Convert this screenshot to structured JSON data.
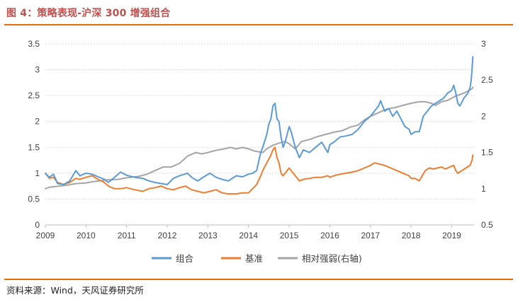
{
  "header": {
    "title": "图 4：策略表现-沪深 300 增强组合"
  },
  "footer": {
    "source": "资料来源：Wind，天风证券研究所"
  },
  "chart_data": {
    "type": "line",
    "title": "",
    "xlabel": "",
    "ylabel": "",
    "xlim": [
      2009.0,
      2019.55
    ],
    "ylim_left": [
      0,
      3.5
    ],
    "ylim_right": [
      0.5,
      3
    ],
    "x_ticks": [
      "2009",
      "2010",
      "2011",
      "2012",
      "2013",
      "2014",
      "2015",
      "2016",
      "2017",
      "2018",
      "2019"
    ],
    "y_left_ticks": [
      "0",
      "0.5",
      "1",
      "1.5",
      "2",
      "2.5",
      "3",
      "3.5"
    ],
    "y_right_ticks": [
      "0.5",
      "1",
      "1.5",
      "2",
      "2.5",
      "3"
    ],
    "legend_position": "bottom",
    "grid": true,
    "series": [
      {
        "name": "组合",
        "axis": "left",
        "color": "#5b9bd5",
        "points": [
          [
            2009.0,
            1.0
          ],
          [
            2009.1,
            0.92
          ],
          [
            2009.2,
            0.98
          ],
          [
            2009.3,
            0.8
          ],
          [
            2009.45,
            0.78
          ],
          [
            2009.6,
            0.85
          ],
          [
            2009.75,
            1.05
          ],
          [
            2009.85,
            0.95
          ],
          [
            2010.0,
            1.0
          ],
          [
            2010.15,
            0.98
          ],
          [
            2010.3,
            0.93
          ],
          [
            2010.45,
            0.88
          ],
          [
            2010.55,
            0.82
          ],
          [
            2010.7,
            0.92
          ],
          [
            2010.85,
            1.02
          ],
          [
            2011.0,
            0.96
          ],
          [
            2011.2,
            0.92
          ],
          [
            2011.4,
            0.9
          ],
          [
            2011.55,
            0.85
          ],
          [
            2011.7,
            0.82
          ],
          [
            2011.85,
            0.8
          ],
          [
            2012.0,
            0.78
          ],
          [
            2012.15,
            0.9
          ],
          [
            2012.3,
            0.95
          ],
          [
            2012.5,
            1.0
          ],
          [
            2012.6,
            0.92
          ],
          [
            2012.75,
            0.85
          ],
          [
            2012.9,
            0.93
          ],
          [
            2013.05,
            1.0
          ],
          [
            2013.2,
            0.92
          ],
          [
            2013.35,
            0.88
          ],
          [
            2013.5,
            0.85
          ],
          [
            2013.7,
            0.95
          ],
          [
            2013.85,
            0.93
          ],
          [
            2014.0,
            0.98
          ],
          [
            2014.1,
            1.0
          ],
          [
            2014.2,
            1.05
          ],
          [
            2014.3,
            1.4
          ],
          [
            2014.35,
            1.5
          ],
          [
            2014.45,
            1.75
          ],
          [
            2014.5,
            1.95
          ],
          [
            2014.55,
            2.05
          ],
          [
            2014.6,
            2.3
          ],
          [
            2014.65,
            2.35
          ],
          [
            2014.7,
            2.05
          ],
          [
            2014.75,
            2.0
          ],
          [
            2014.8,
            1.7
          ],
          [
            2014.85,
            1.5
          ],
          [
            2014.9,
            1.6
          ],
          [
            2015.0,
            1.9
          ],
          [
            2015.05,
            1.8
          ],
          [
            2015.15,
            1.5
          ],
          [
            2015.25,
            1.3
          ],
          [
            2015.35,
            1.45
          ],
          [
            2015.5,
            1.4
          ],
          [
            2015.65,
            1.5
          ],
          [
            2015.8,
            1.6
          ],
          [
            2015.95,
            1.4
          ],
          [
            2016.0,
            1.55
          ],
          [
            2016.1,
            1.6
          ],
          [
            2016.25,
            1.7
          ],
          [
            2016.4,
            1.72
          ],
          [
            2016.55,
            1.75
          ],
          [
            2016.7,
            1.85
          ],
          [
            2016.85,
            2.0
          ],
          [
            2017.0,
            2.1
          ],
          [
            2017.1,
            2.2
          ],
          [
            2017.2,
            2.3
          ],
          [
            2017.25,
            2.4
          ],
          [
            2017.35,
            2.2
          ],
          [
            2017.45,
            2.25
          ],
          [
            2017.55,
            2.1
          ],
          [
            2017.65,
            2.2
          ],
          [
            2017.75,
            2.05
          ],
          [
            2017.85,
            1.9
          ],
          [
            2017.95,
            1.85
          ],
          [
            2018.0,
            1.75
          ],
          [
            2018.1,
            1.8
          ],
          [
            2018.2,
            1.8
          ],
          [
            2018.25,
            1.95
          ],
          [
            2018.3,
            2.1
          ],
          [
            2018.4,
            2.2
          ],
          [
            2018.5,
            2.3
          ],
          [
            2018.6,
            2.35
          ],
          [
            2018.7,
            2.4
          ],
          [
            2018.8,
            2.45
          ],
          [
            2018.9,
            2.55
          ],
          [
            2019.0,
            2.6
          ],
          [
            2019.05,
            2.7
          ],
          [
            2019.1,
            2.55
          ],
          [
            2019.15,
            2.35
          ],
          [
            2019.2,
            2.3
          ],
          [
            2019.3,
            2.45
          ],
          [
            2019.4,
            2.55
          ],
          [
            2019.45,
            2.65
          ],
          [
            2019.48,
            2.8
          ],
          [
            2019.5,
            3.0
          ],
          [
            2019.52,
            3.25
          ]
        ]
      },
      {
        "name": "基准",
        "axis": "left",
        "color": "#ed7d31",
        "points": [
          [
            2009.0,
            1.0
          ],
          [
            2009.1,
            0.9
          ],
          [
            2009.2,
            0.92
          ],
          [
            2009.3,
            0.82
          ],
          [
            2009.45,
            0.78
          ],
          [
            2009.6,
            0.82
          ],
          [
            2009.75,
            0.9
          ],
          [
            2009.85,
            0.88
          ],
          [
            2010.0,
            0.92
          ],
          [
            2010.15,
            0.95
          ],
          [
            2010.3,
            0.88
          ],
          [
            2010.45,
            0.82
          ],
          [
            2010.55,
            0.75
          ],
          [
            2010.7,
            0.7
          ],
          [
            2010.85,
            0.7
          ],
          [
            2011.0,
            0.72
          ],
          [
            2011.2,
            0.68
          ],
          [
            2011.4,
            0.65
          ],
          [
            2011.55,
            0.7
          ],
          [
            2011.7,
            0.72
          ],
          [
            2011.85,
            0.75
          ],
          [
            2012.0,
            0.7
          ],
          [
            2012.15,
            0.68
          ],
          [
            2012.3,
            0.72
          ],
          [
            2012.45,
            0.75
          ],
          [
            2012.6,
            0.68
          ],
          [
            2012.75,
            0.65
          ],
          [
            2012.9,
            0.62
          ],
          [
            2013.05,
            0.65
          ],
          [
            2013.2,
            0.68
          ],
          [
            2013.35,
            0.62
          ],
          [
            2013.5,
            0.6
          ],
          [
            2013.7,
            0.6
          ],
          [
            2013.85,
            0.62
          ],
          [
            2014.0,
            0.62
          ],
          [
            2014.1,
            0.7
          ],
          [
            2014.2,
            0.78
          ],
          [
            2014.3,
            0.95
          ],
          [
            2014.35,
            1.05
          ],
          [
            2014.45,
            1.2
          ],
          [
            2014.55,
            1.35
          ],
          [
            2014.6,
            1.45
          ],
          [
            2014.65,
            1.5
          ],
          [
            2014.7,
            1.3
          ],
          [
            2014.75,
            1.2
          ],
          [
            2014.8,
            1.0
          ],
          [
            2014.85,
            0.95
          ],
          [
            2014.9,
            1.0
          ],
          [
            2015.0,
            1.1
          ],
          [
            2015.05,
            1.05
          ],
          [
            2015.15,
            0.95
          ],
          [
            2015.25,
            0.85
          ],
          [
            2015.35,
            0.88
          ],
          [
            2015.5,
            0.9
          ],
          [
            2015.65,
            0.92
          ],
          [
            2015.8,
            0.92
          ],
          [
            2015.95,
            0.95
          ],
          [
            2016.0,
            0.92
          ],
          [
            2016.1,
            0.95
          ],
          [
            2016.25,
            0.98
          ],
          [
            2016.4,
            1.0
          ],
          [
            2016.55,
            1.02
          ],
          [
            2016.7,
            1.05
          ],
          [
            2016.85,
            1.1
          ],
          [
            2017.0,
            1.15
          ],
          [
            2017.1,
            1.2
          ],
          [
            2017.2,
            1.18
          ],
          [
            2017.35,
            1.15
          ],
          [
            2017.5,
            1.1
          ],
          [
            2017.65,
            1.05
          ],
          [
            2017.8,
            1.0
          ],
          [
            2017.95,
            0.95
          ],
          [
            2018.0,
            0.9
          ],
          [
            2018.1,
            0.9
          ],
          [
            2018.2,
            0.85
          ],
          [
            2018.25,
            0.92
          ],
          [
            2018.35,
            1.05
          ],
          [
            2018.45,
            1.1
          ],
          [
            2018.55,
            1.08
          ],
          [
            2018.65,
            1.1
          ],
          [
            2018.75,
            1.12
          ],
          [
            2018.85,
            1.08
          ],
          [
            2018.95,
            1.12
          ],
          [
            2019.05,
            1.15
          ],
          [
            2019.1,
            1.05
          ],
          [
            2019.15,
            1.0
          ],
          [
            2019.25,
            1.05
          ],
          [
            2019.35,
            1.1
          ],
          [
            2019.45,
            1.15
          ],
          [
            2019.5,
            1.25
          ],
          [
            2019.52,
            1.35
          ]
        ]
      },
      {
        "name": "相对强弱(右轴)",
        "axis": "right",
        "color": "#a5a5a5",
        "points": [
          [
            2009.0,
            1.0
          ],
          [
            2009.1,
            1.02
          ],
          [
            2009.25,
            1.03
          ],
          [
            2009.4,
            1.04
          ],
          [
            2009.55,
            1.05
          ],
          [
            2009.75,
            1.07
          ],
          [
            2010.0,
            1.08
          ],
          [
            2010.2,
            1.1
          ],
          [
            2010.5,
            1.12
          ],
          [
            2010.8,
            1.13
          ],
          [
            2011.0,
            1.15
          ],
          [
            2011.3,
            1.17
          ],
          [
            2011.5,
            1.2
          ],
          [
            2011.7,
            1.25
          ],
          [
            2011.9,
            1.3
          ],
          [
            2012.1,
            1.3
          ],
          [
            2012.3,
            1.35
          ],
          [
            2012.5,
            1.45
          ],
          [
            2012.7,
            1.5
          ],
          [
            2012.85,
            1.48
          ],
          [
            2013.0,
            1.5
          ],
          [
            2013.2,
            1.53
          ],
          [
            2013.4,
            1.55
          ],
          [
            2013.55,
            1.57
          ],
          [
            2013.7,
            1.55
          ],
          [
            2013.85,
            1.57
          ],
          [
            2014.0,
            1.55
          ],
          [
            2014.15,
            1.52
          ],
          [
            2014.35,
            1.5
          ],
          [
            2014.45,
            1.55
          ],
          [
            2014.6,
            1.6
          ],
          [
            2014.75,
            1.63
          ],
          [
            2014.9,
            1.65
          ],
          [
            2015.0,
            1.62
          ],
          [
            2015.15,
            1.55
          ],
          [
            2015.3,
            1.65
          ],
          [
            2015.5,
            1.68
          ],
          [
            2015.7,
            1.72
          ],
          [
            2015.9,
            1.75
          ],
          [
            2016.1,
            1.78
          ],
          [
            2016.3,
            1.8
          ],
          [
            2016.5,
            1.85
          ],
          [
            2016.7,
            1.88
          ],
          [
            2016.85,
            1.95
          ],
          [
            2017.0,
            2.0
          ],
          [
            2017.2,
            2.05
          ],
          [
            2017.4,
            2.1
          ],
          [
            2017.6,
            2.12
          ],
          [
            2017.8,
            2.15
          ],
          [
            2018.0,
            2.18
          ],
          [
            2018.2,
            2.2
          ],
          [
            2018.35,
            2.2
          ],
          [
            2018.5,
            2.18
          ],
          [
            2018.6,
            2.15
          ],
          [
            2018.75,
            2.2
          ],
          [
            2018.9,
            2.22
          ],
          [
            2019.0,
            2.25
          ],
          [
            2019.1,
            2.28
          ],
          [
            2019.2,
            2.3
          ],
          [
            2019.3,
            2.32
          ],
          [
            2019.4,
            2.35
          ],
          [
            2019.5,
            2.38
          ],
          [
            2019.52,
            2.4
          ]
        ]
      }
    ]
  }
}
